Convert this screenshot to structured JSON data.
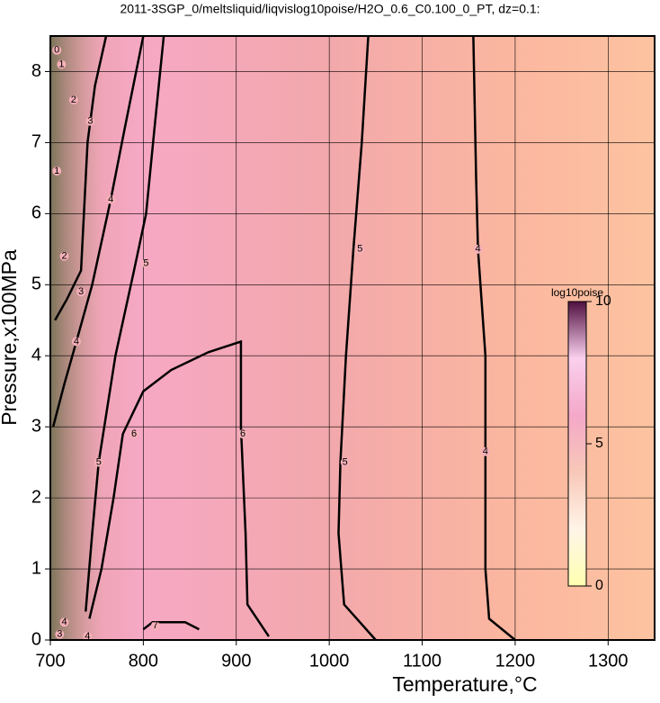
{
  "chart_data": {
    "type": "contour",
    "title": "2011-3SGP_0/meltsliquid/liqvislog10poise/H2O_0.6_C0.100_0_PT, dz=0.1:",
    "x_label": "Temperature,°C",
    "y_label": "Pressure,x100MPa",
    "xlim": [
      700,
      1350
    ],
    "ylim": [
      0,
      8.5
    ],
    "xticks": [
      700,
      800,
      900,
      1000,
      1100,
      1200,
      1300
    ],
    "yticks": [
      0,
      1,
      2,
      3,
      4,
      5,
      6,
      7,
      8
    ],
    "grid": true,
    "colorbar": {
      "label": "log10poise",
      "clim": [
        0,
        10
      ],
      "ticks": [
        0,
        5,
        10
      ]
    },
    "contours": [
      {
        "level": 4,
        "x": [
          1200,
          1172,
          1168,
          1168,
          1168,
          1160,
          1158,
          1155
        ],
        "y": [
          0,
          0.3,
          1,
          2,
          4,
          5.5,
          6.5,
          8.5
        ]
      },
      {
        "level": 5,
        "x": [
          1050,
          1016,
          1010,
          1012,
          1018,
          1026,
          1035,
          1042
        ],
        "y": [
          0,
          0.5,
          1.5,
          2.5,
          4,
          5.5,
          7,
          8.5
        ]
      },
      {
        "level": 6,
        "x": [
          935,
          912,
          910,
          905,
          905,
          870,
          830,
          800,
          778,
          768,
          755,
          742
        ],
        "y": [
          0.05,
          0.5,
          1.5,
          3,
          4.2,
          4.05,
          3.8,
          3.5,
          2.9,
          2,
          1,
          0.3
        ]
      },
      {
        "level": 7,
        "x": [
          800,
          810,
          845,
          860
        ],
        "y": [
          0.15,
          0.25,
          0.25,
          0.15
        ]
      },
      {
        "level": 5,
        "x": [
          738,
          745,
          752,
          770,
          790,
          803,
          812,
          822
        ],
        "y": [
          0.4,
          1.5,
          2.5,
          4,
          5.2,
          6,
          7.2,
          8.5
        ]
      },
      {
        "level": 4,
        "x": [
          703,
          715,
          728,
          745,
          765,
          780,
          800
        ],
        "y": [
          3,
          3.6,
          4.2,
          5,
          6.2,
          7.2,
          8.5
        ]
      },
      {
        "level": 3,
        "x": [
          705,
          718,
          733,
          740,
          748,
          760
        ],
        "y": [
          4.5,
          4.8,
          5.2,
          7,
          7.8,
          8.5
        ]
      }
    ],
    "contour_labels": [
      {
        "level": 4,
        "x": 1168,
        "y": 2.65
      },
      {
        "level": 4,
        "x": 1160,
        "y": 5.5
      },
      {
        "level": 5,
        "x": 1017,
        "y": 2.5
      },
      {
        "level": 5,
        "x": 1033,
        "y": 5.5
      },
      {
        "level": 6,
        "x": 907,
        "y": 2.9
      },
      {
        "level": 6,
        "x": 790,
        "y": 2.9
      },
      {
        "level": 5,
        "x": 752,
        "y": 2.5
      },
      {
        "level": 5,
        "x": 803,
        "y": 5.3
      },
      {
        "level": 4,
        "x": 728,
        "y": 4.2
      },
      {
        "level": 4,
        "x": 765,
        "y": 6.2
      },
      {
        "level": 3,
        "x": 733,
        "y": 4.9
      },
      {
        "level": 3,
        "x": 743,
        "y": 7.3
      },
      {
        "level": 2,
        "x": 715,
        "y": 5.4
      },
      {
        "level": 2,
        "x": 725,
        "y": 7.6
      },
      {
        "level": 1,
        "x": 707,
        "y": 6.6
      },
      {
        "level": 1,
        "x": 712,
        "y": 8.1
      },
      {
        "level": 0,
        "x": 707,
        "y": 8.3
      },
      {
        "level": 7,
        "x": 813,
        "y": 0.2
      },
      {
        "level": 4,
        "x": 715,
        "y": 0.25
      },
      {
        "level": 4,
        "x": 740,
        "y": 0.05
      },
      {
        "level": 3,
        "x": 710,
        "y": 0.08
      }
    ]
  }
}
